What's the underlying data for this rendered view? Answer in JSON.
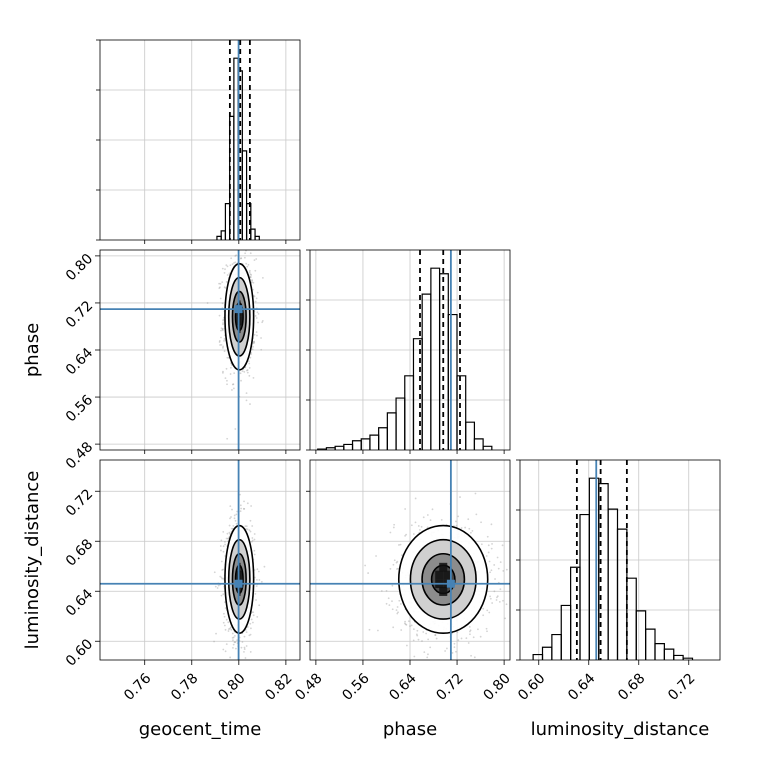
{
  "chart_data": {
    "type": "corner",
    "params": [
      "geocent_time",
      "phase",
      "luminosity_distance"
    ],
    "axis_labels": {
      "geocent_time": "geocent_time",
      "phase": "phase",
      "luminosity_distance": "luminosity_distance"
    },
    "ranges": {
      "geocent_time": [
        0.741,
        0.826
      ],
      "phase": [
        0.47,
        0.81
      ],
      "luminosity_distance": [
        0.585,
        0.745
      ]
    },
    "ticks": {
      "geocent_time": [
        0.76,
        0.78,
        0.8,
        0.82
      ],
      "phase": [
        0.48,
        0.56,
        0.64,
        0.72,
        0.8
      ],
      "luminosity_distance": [
        0.6,
        0.64,
        0.68,
        0.72
      ]
    },
    "tick_labels": {
      "geocent_time": [
        "0.76",
        "0.78",
        "0.80",
        "0.82"
      ],
      "phase": [
        "0.48",
        "0.56",
        "0.64",
        "0.72",
        "0.80"
      ],
      "luminosity_distance": [
        "0.60",
        "0.64",
        "0.68",
        "0.72"
      ]
    },
    "truths": {
      "geocent_time": 0.7999,
      "phase": 0.7095,
      "luminosity_distance": 0.646
    },
    "quantiles": {
      "geocent_time": [
        0.7962,
        0.8006,
        0.8047
      ],
      "phase": [
        0.657,
        0.6965,
        0.725
      ],
      "luminosity_distance": [
        0.6305,
        0.6495,
        0.6705
      ]
    },
    "histograms": {
      "geocent_time": {
        "edges": [
          0.7907,
          0.7925,
          0.7943,
          0.7961,
          0.7979,
          0.7997,
          0.8015,
          0.8033,
          0.8051,
          0.8069,
          0.8087
        ],
        "counts": [
          0.02,
          0.05,
          0.2,
          0.68,
          1.0,
          0.93,
          0.49,
          0.2,
          0.06,
          0.02
        ]
      },
      "phase": {
        "edges": [
          0.4831,
          0.4979,
          0.5127,
          0.5275,
          0.5423,
          0.5571,
          0.5719,
          0.5867,
          0.6015,
          0.6163,
          0.6311,
          0.6459,
          0.6607,
          0.6755,
          0.6903,
          0.7051,
          0.7199,
          0.7347,
          0.7495,
          0.7643,
          0.7791
        ],
        "counts": [
          0.005,
          0.012,
          0.02,
          0.03,
          0.05,
          0.06,
          0.08,
          0.12,
          0.2,
          0.28,
          0.4,
          0.6,
          0.84,
          0.98,
          0.95,
          0.73,
          0.4,
          0.15,
          0.06,
          0.02
        ]
      },
      "luminosity_distance": {
        "edges": [
          0.5955,
          0.603,
          0.6105,
          0.618,
          0.6255,
          0.633,
          0.6405,
          0.648,
          0.6555,
          0.663,
          0.6705,
          0.678,
          0.6855,
          0.693,
          0.7005,
          0.708,
          0.7155,
          0.723
        ],
        "counts": [
          0.03,
          0.07,
          0.14,
          0.3,
          0.51,
          0.8,
          1.0,
          0.97,
          0.83,
          0.72,
          0.45,
          0.27,
          0.17,
          0.09,
          0.06,
          0.025,
          0.01
        ]
      }
    },
    "joint": [
      {
        "x": "geocent_time",
        "y": "phase",
        "x_center": 0.8002,
        "y_center": 0.6965,
        "x_sd": 0.0029,
        "y_sd": 0.043,
        "rho": 0.0
      },
      {
        "x": "geocent_time",
        "y": "luminosity_distance",
        "x_center": 0.8002,
        "y_center": 0.6495,
        "x_sd": 0.0029,
        "y_sd": 0.0205,
        "rho": 0.0
      },
      {
        "x": "phase",
        "y": "luminosity_distance",
        "x_center": 0.6965,
        "y_center": 0.6495,
        "x_sd": 0.036,
        "y_sd": 0.0205,
        "rho": 0.0
      }
    ],
    "grid": true,
    "colors": {
      "truth": "#4682b4",
      "hist": "#000000",
      "quantile": "#000000",
      "contour": "#000000",
      "points": "#a0a0a0",
      "grid": "#c8c8c8"
    }
  }
}
